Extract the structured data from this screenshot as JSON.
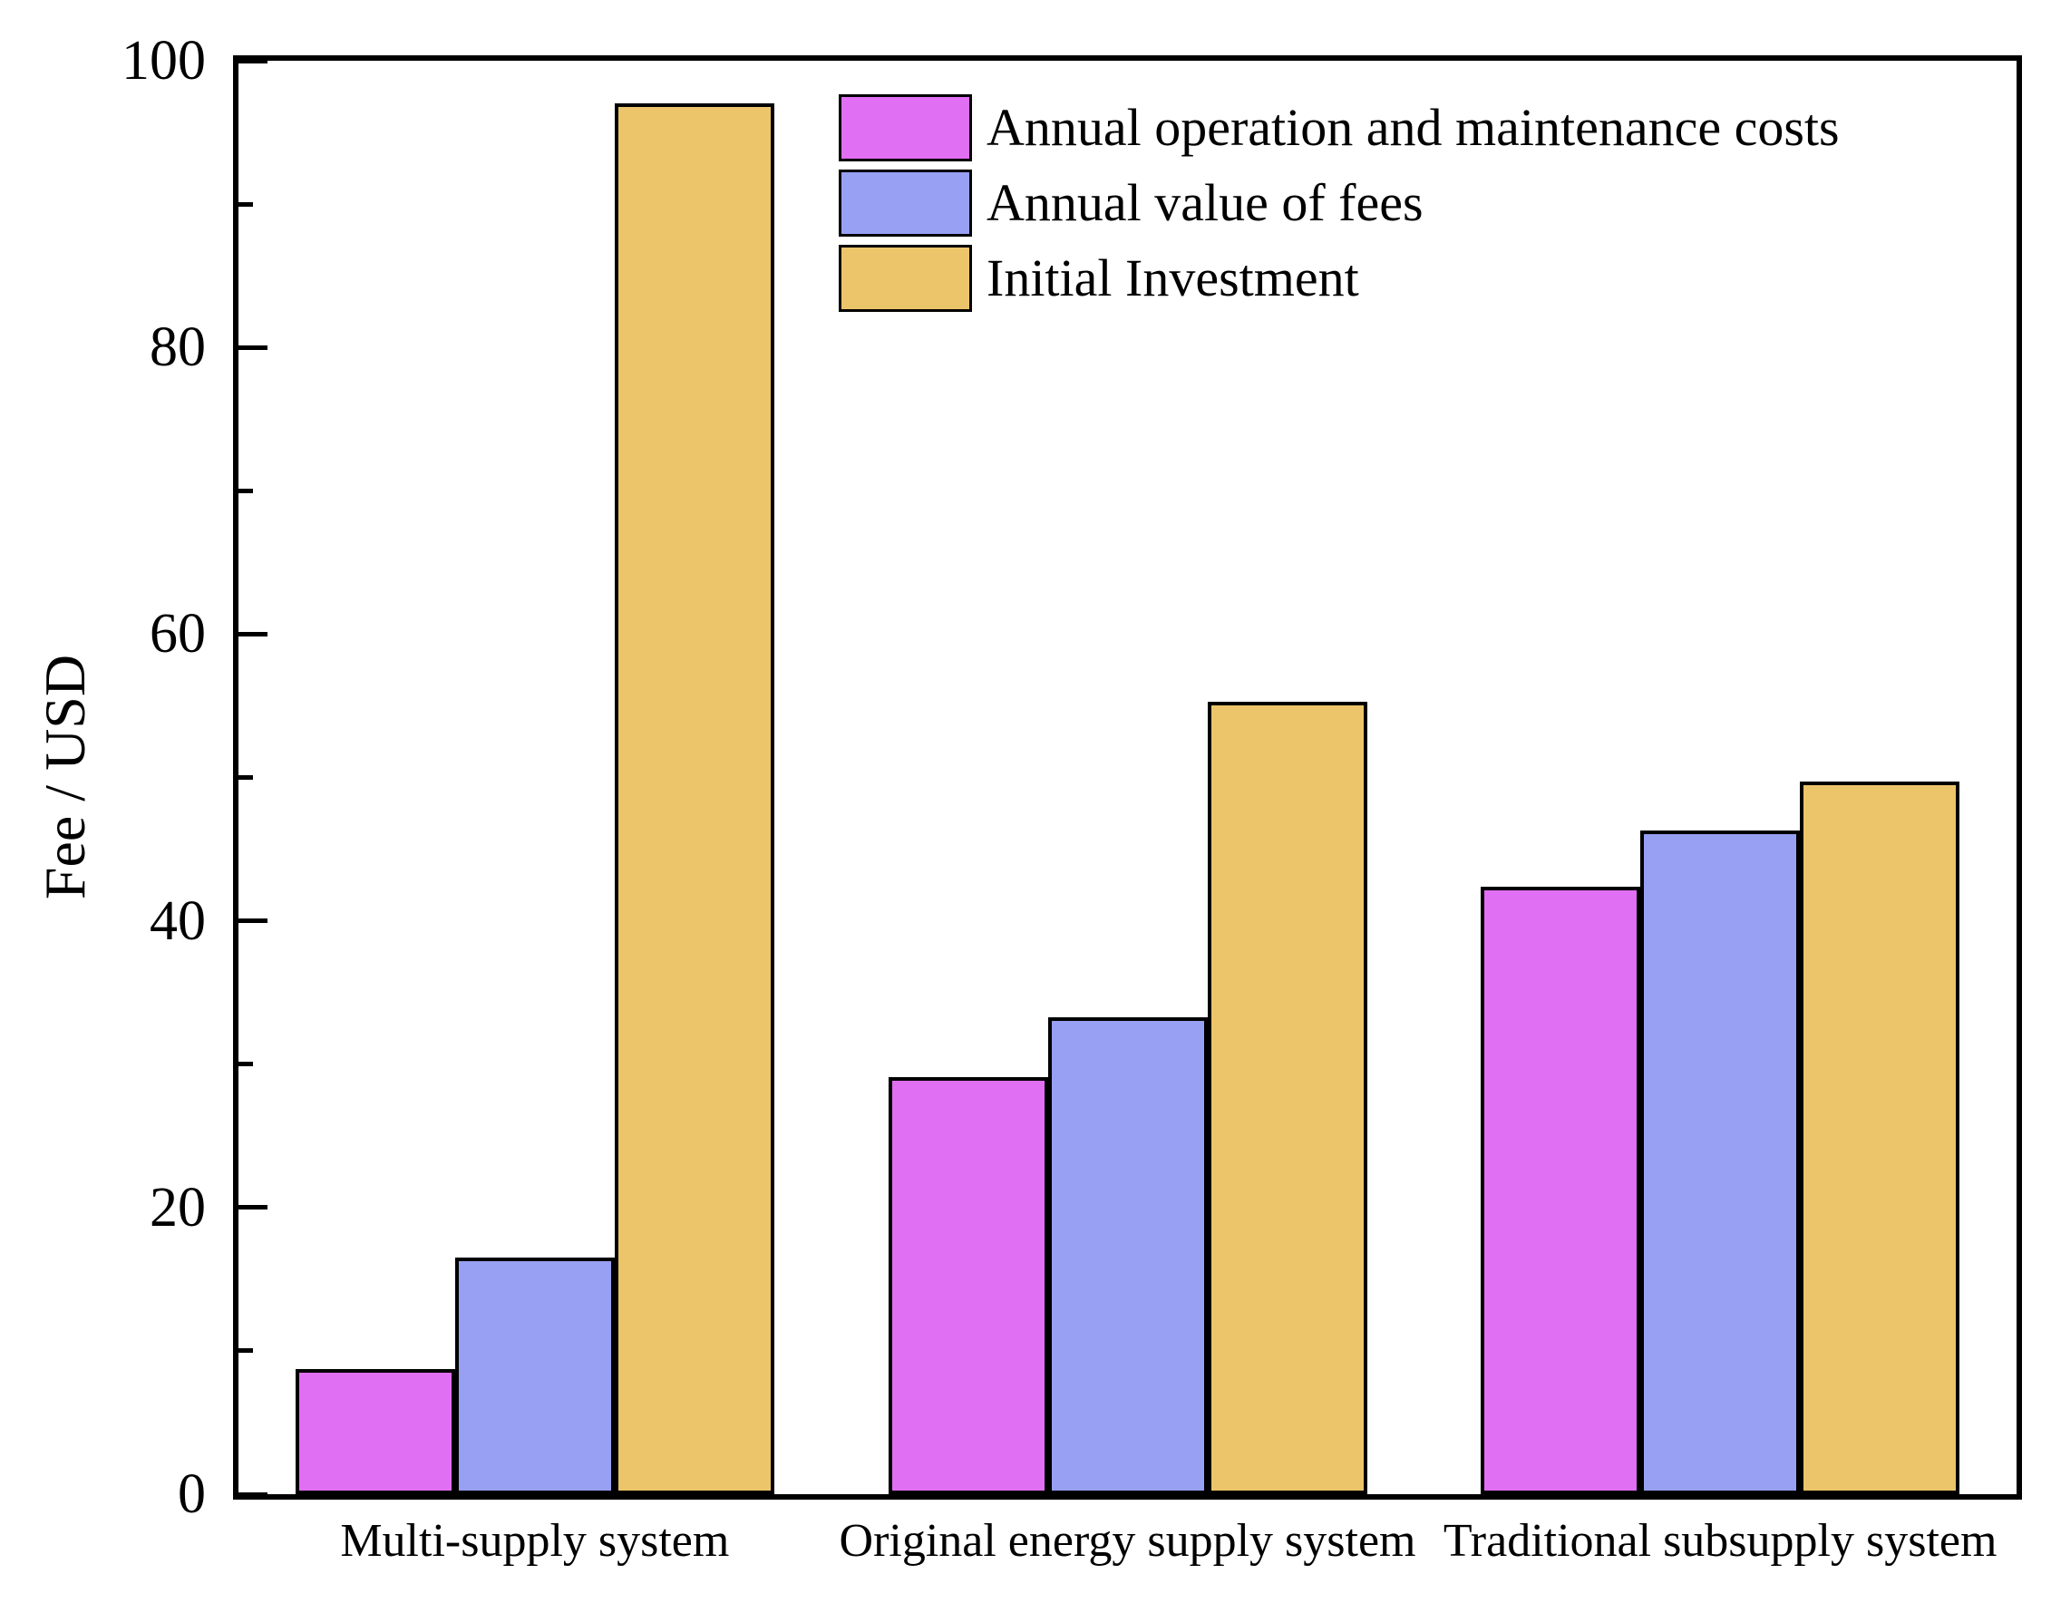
{
  "figure": {
    "background": "#ffffff",
    "axis_color": "#000000",
    "frame": true
  },
  "chart_data": {
    "type": "bar",
    "title": "",
    "xlabel": "",
    "ylabel": "Fee / USD",
    "ylim": [
      0,
      100
    ],
    "yticks_major": [
      0,
      20,
      40,
      60,
      80,
      100
    ],
    "yticks_minor": [
      10,
      30,
      50,
      70,
      90
    ],
    "grid": false,
    "legend_position": "top-left-inside",
    "categories": [
      "Multi-supply system",
      "Original energy supply system",
      "Traditional subsupply system"
    ],
    "series": [
      {
        "name": "Annual operation and maintenance costs",
        "color": "#e06ff3",
        "values": [
          8.7,
          29.1,
          42.4
        ]
      },
      {
        "name": "Annual value of fees",
        "color": "#97a0f2",
        "values": [
          16.5,
          33.3,
          46.3
        ]
      },
      {
        "name": "Initial Investment",
        "color": "#ecc56b",
        "values": [
          97.0,
          55.3,
          49.7
        ]
      }
    ],
    "bar_edge_color": "#000000"
  }
}
